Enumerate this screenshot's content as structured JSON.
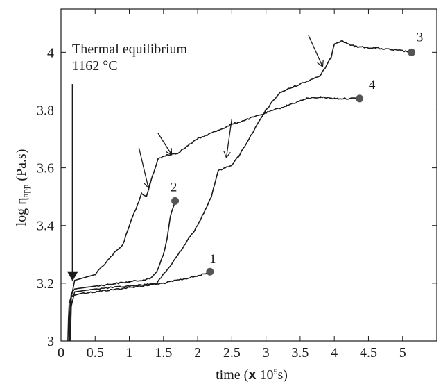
{
  "chart_data": {
    "type": "line",
    "xlabel": "time (x 10⁵s)",
    "xlabel_parts": {
      "prefix": "time (",
      "times": "x",
      "base": " 10",
      "exp": "5",
      "unit": "s)"
    },
    "ylabel": "log ηapp (Pa.s)",
    "ylabel_parts": {
      "prefix": "log ",
      "eta": "η",
      "sub": "app",
      "unit": " (Pa.s)"
    },
    "xlim": [
      0,
      5.5
    ],
    "ylim": [
      3.0,
      4.15
    ],
    "x_ticks": [
      0,
      0.5,
      1,
      1.5,
      2,
      2.5,
      3,
      3.5,
      4,
      4.5,
      5
    ],
    "x_tick_labels": [
      "0",
      "0.5",
      "1",
      "1.5",
      "2",
      "2.5",
      "3",
      "3.5",
      "4",
      "4.5",
      "5"
    ],
    "y_ticks": [
      3.0,
      3.2,
      3.4,
      3.6,
      3.8,
      4.0
    ],
    "y_tick_labels": [
      "3",
      "3.2",
      "3.4",
      "3.6",
      "3.8",
      "4"
    ],
    "grid": false,
    "legend": "none",
    "annotation": {
      "lines": [
        "Thermal equilibrium",
        "1162 °C"
      ],
      "arrow_from": [
        0.17,
        3.89
      ],
      "arrow_to": [
        0.17,
        3.21
      ]
    },
    "series": [
      {
        "label": "1",
        "end_marker": [
          2.18,
          3.24
        ],
        "points": [
          [
            0.1,
            3.0
          ],
          [
            0.11,
            3.08
          ],
          [
            0.12,
            3.13
          ],
          [
            0.15,
            3.155
          ],
          [
            0.3,
            3.165
          ],
          [
            0.5,
            3.17
          ],
          [
            1.0,
            3.185
          ],
          [
            1.5,
            3.2
          ],
          [
            2.0,
            3.225
          ],
          [
            2.18,
            3.24
          ]
        ]
      },
      {
        "label": "2",
        "end_marker": [
          1.67,
          3.485
        ],
        "points": [
          [
            0.12,
            3.0
          ],
          [
            0.13,
            3.1
          ],
          [
            0.15,
            3.165
          ],
          [
            0.2,
            3.18
          ],
          [
            0.5,
            3.19
          ],
          [
            1.0,
            3.205
          ],
          [
            1.3,
            3.215
          ],
          [
            1.4,
            3.24
          ],
          [
            1.5,
            3.3
          ],
          [
            1.55,
            3.35
          ],
          [
            1.6,
            3.43
          ],
          [
            1.67,
            3.485
          ]
        ]
      },
      {
        "label": "3",
        "end_marker": [
          5.13,
          4.0
        ],
        "points": [
          [
            0.13,
            3.0
          ],
          [
            0.15,
            3.12
          ],
          [
            0.2,
            3.17
          ],
          [
            0.5,
            3.18
          ],
          [
            1.0,
            3.19
          ],
          [
            1.4,
            3.2
          ],
          [
            1.6,
            3.26
          ],
          [
            1.8,
            3.33
          ],
          [
            2.0,
            3.4
          ],
          [
            2.2,
            3.5
          ],
          [
            2.3,
            3.59
          ],
          [
            2.4,
            3.6
          ],
          [
            2.5,
            3.61
          ],
          [
            2.6,
            3.64
          ],
          [
            2.8,
            3.72
          ],
          [
            3.0,
            3.8
          ],
          [
            3.2,
            3.86
          ],
          [
            3.4,
            3.88
          ],
          [
            3.6,
            3.9
          ],
          [
            3.8,
            3.92
          ],
          [
            3.95,
            3.98
          ],
          [
            4.0,
            4.03
          ],
          [
            4.1,
            4.04
          ],
          [
            4.3,
            4.02
          ],
          [
            4.6,
            4.015
          ],
          [
            5.0,
            4.005
          ],
          [
            5.13,
            4.0
          ]
        ]
      },
      {
        "label": "4",
        "end_marker": [
          4.37,
          3.84
        ],
        "points": [
          [
            0.14,
            3.0
          ],
          [
            0.15,
            3.15
          ],
          [
            0.2,
            3.21
          ],
          [
            0.5,
            3.23
          ],
          [
            0.8,
            3.31
          ],
          [
            0.9,
            3.33
          ],
          [
            1.0,
            3.4
          ],
          [
            1.1,
            3.46
          ],
          [
            1.18,
            3.51
          ],
          [
            1.25,
            3.5
          ],
          [
            1.35,
            3.58
          ],
          [
            1.42,
            3.63
          ],
          [
            1.55,
            3.645
          ],
          [
            1.7,
            3.65
          ],
          [
            2.0,
            3.7
          ],
          [
            2.5,
            3.75
          ],
          [
            3.0,
            3.79
          ],
          [
            3.3,
            3.815
          ],
          [
            3.6,
            3.84
          ],
          [
            3.8,
            3.845
          ],
          [
            4.0,
            3.84
          ],
          [
            4.37,
            3.84
          ]
        ]
      }
    ],
    "arrows": [
      {
        "to": [
          1.28,
          3.53
        ],
        "from": [
          1.14,
          3.67
        ]
      },
      {
        "to": [
          1.62,
          3.645
        ],
        "from": [
          1.42,
          3.72
        ]
      },
      {
        "to": [
          2.42,
          3.635
        ],
        "from": [
          2.5,
          3.77
        ]
      },
      {
        "to": [
          3.83,
          3.95
        ],
        "from": [
          3.62,
          4.06
        ]
      }
    ]
  }
}
